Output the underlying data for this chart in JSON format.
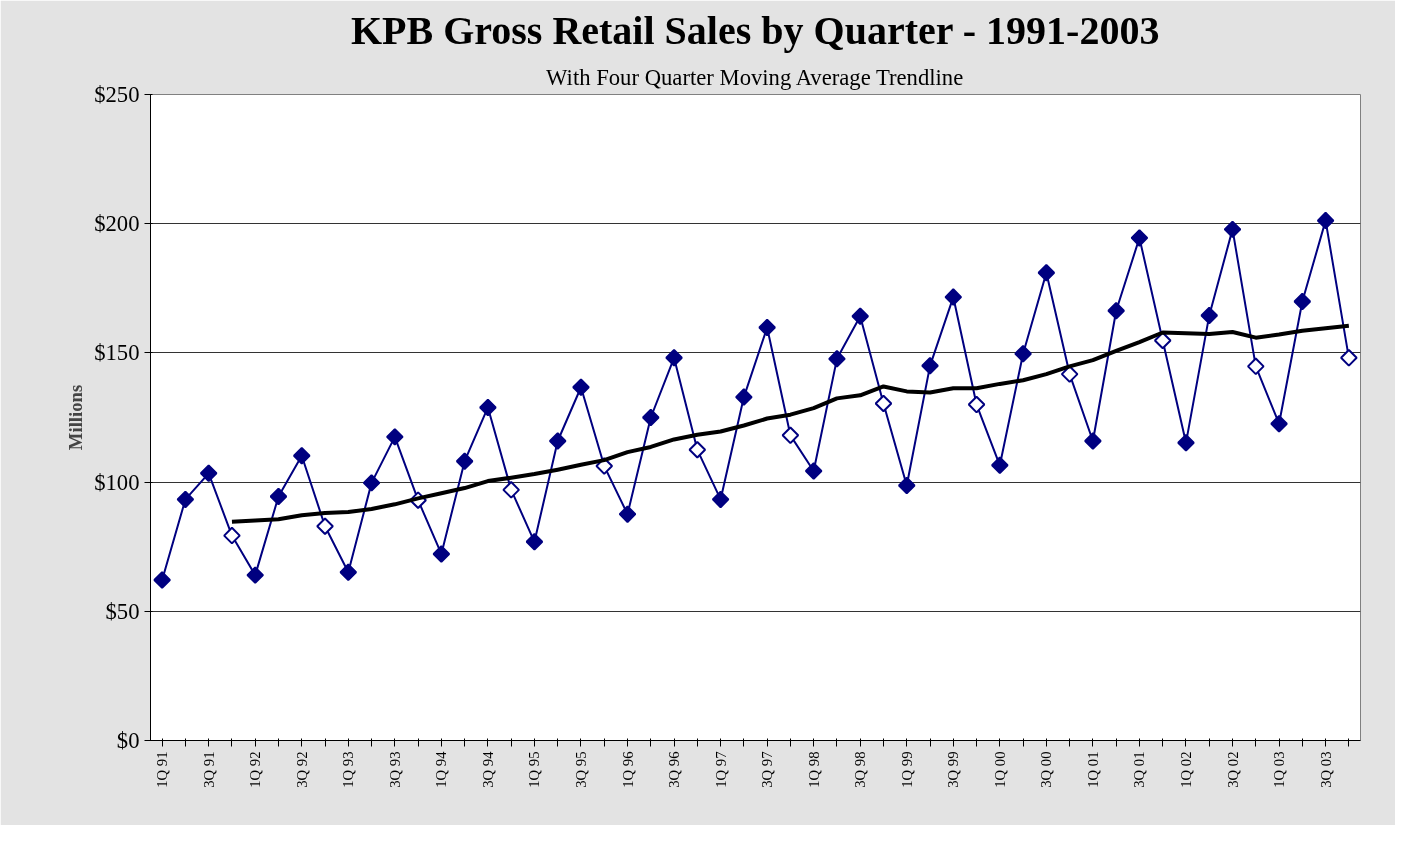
{
  "chart_data": {
    "type": "line",
    "title": "KPB Gross Retail Sales by Quarter - 1991-2003",
    "subtitle": "With Four Quarter Moving Average Trendline",
    "ylabel": "Millions",
    "categories": [
      "1Q 91",
      null,
      "3Q 91",
      null,
      "1Q 92",
      null,
      "3Q 92",
      null,
      "1Q 93",
      null,
      "3Q 93",
      null,
      "1Q 94",
      null,
      "3Q 94",
      null,
      "1Q 95",
      null,
      "3Q 95",
      null,
      "1Q 96",
      null,
      "3Q 96",
      null,
      "1Q 97",
      null,
      "3Q 97",
      null,
      "1Q 98",
      null,
      "3Q 98",
      null,
      "1Q 99",
      null,
      "3Q 99",
      null,
      "1Q 00",
      null,
      "3Q 00",
      null,
      "1Q 01",
      null,
      "3Q 01",
      null,
      "1Q 02",
      null,
      "3Q 02",
      null,
      "1Q 03",
      null,
      "3Q 03",
      null
    ],
    "series": [
      {
        "marker": "diamond",
        "color": "#000080",
        "colors": [
          "#000080",
          "#000080",
          "#000080",
          "#ffffff",
          "#000080",
          "#000080",
          "#000080",
          "#ffffff",
          "#000080",
          "#000080",
          "#000080",
          "#ffffff",
          "#000080",
          "#000080",
          "#000080",
          "#ffffff",
          "#000080",
          "#000080",
          "#000080",
          "#ffffff",
          "#000080",
          "#000080",
          "#000080",
          "#ffffff",
          "#000080",
          "#000080",
          "#000080",
          "#ffffff",
          "#000080",
          "#000080",
          "#000080",
          "#ffffff",
          "#000080",
          "#000080",
          "#000080",
          "#ffffff",
          "#000080",
          "#000080",
          "#000080",
          "#ffffff",
          "#000080",
          "#000080",
          "#000080",
          "#ffffff",
          "#000080",
          "#000080",
          "#000080",
          "#ffffff",
          "#000080",
          "#000080",
          "#000080",
          "#ffffff"
        ],
        "values": [
          62.1,
          93.3,
          103.4,
          79.3,
          64.0,
          94.4,
          110.2,
          82.9,
          65.1,
          99.7,
          117.5,
          93.0,
          72.2,
          108.1,
          128.9,
          97.0,
          76.9,
          115.9,
          136.7,
          106.2,
          87.6,
          125.0,
          148.1,
          112.5,
          93.3,
          132.9,
          159.8,
          118.1,
          104.3,
          147.7,
          164.2,
          130.4,
          98.7,
          145.0,
          171.6,
          130.0,
          106.5,
          149.7,
          181.0,
          141.8,
          115.9,
          166.3,
          194.5,
          154.8,
          115.2,
          164.5,
          197.8,
          144.8,
          122.6,
          169.9,
          201.2,
          148.1
        ]
      },
      {
        "marker": "none",
        "color": "#000000",
        "values": [
          null,
          null,
          null,
          84.7,
          85.1,
          85.6,
          87.2,
          88.0,
          88.4,
          89.6,
          91.4,
          93.7,
          95.7,
          97.7,
          100.4,
          101.7,
          103.1,
          104.8,
          106.7,
          108.5,
          111.6,
          113.6,
          116.5,
          118.3,
          119.6,
          121.9,
          124.6,
          126.1,
          128.6,
          132.4,
          133.6,
          137.0,
          135.1,
          134.7,
          136.3,
          136.3,
          138.0,
          139.4,
          141.8,
          144.8,
          147.2,
          150.8,
          154.2,
          157.9,
          157.6,
          157.3,
          158.1,
          155.9,
          157.1,
          158.6,
          159.5,
          160.5
        ]
      }
    ],
    "ylim": [
      0,
      250
    ],
    "yticks": [
      {
        "value": 0,
        "label": "$0"
      },
      {
        "value": 50,
        "label": "$50"
      },
      {
        "value": 100,
        "label": "$100"
      },
      {
        "value": 150,
        "label": "$150"
      },
      {
        "value": 200,
        "label": "$200"
      },
      {
        "value": 250,
        "label": "$250"
      }
    ],
    "grid": "y"
  }
}
